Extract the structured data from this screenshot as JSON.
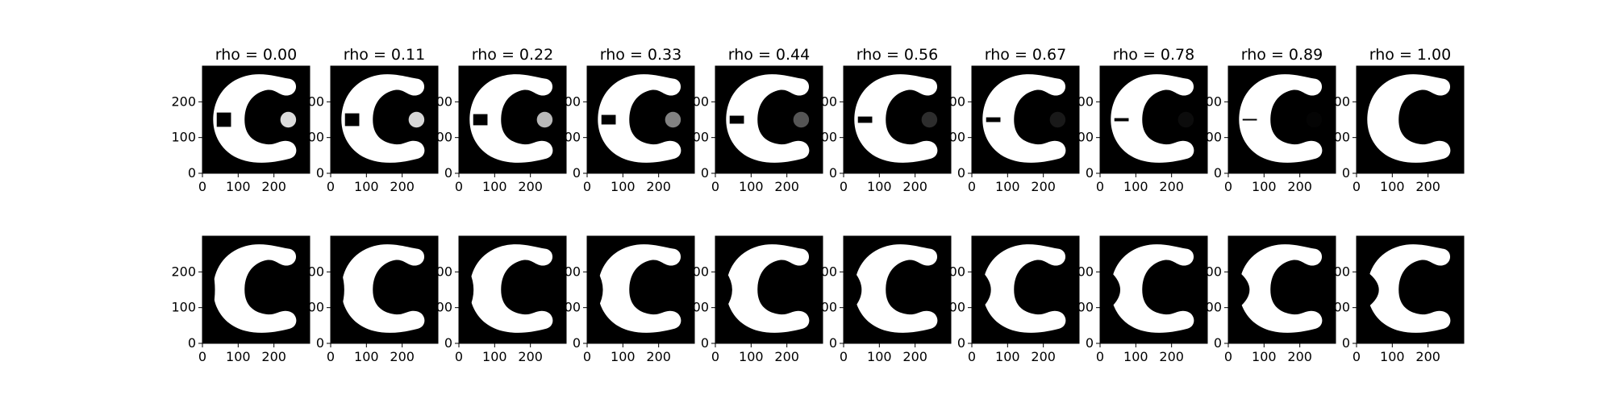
{
  "chart_data": {
    "type": "image-grid",
    "layout": {
      "rows": 2,
      "cols": 10
    },
    "rho_values": [
      0.0,
      0.11,
      0.22,
      0.33,
      0.44,
      0.56,
      0.67,
      0.78,
      0.89,
      1.0
    ],
    "titles": [
      "rho = 0.00",
      "rho = 0.11",
      "rho = 0.22",
      "rho = 0.33",
      "rho = 0.44",
      "rho = 0.56",
      "rho = 0.67",
      "rho = 0.78",
      "rho = 0.89",
      "rho = 1.00"
    ],
    "title_rows": [
      0
    ],
    "x_ticks": [
      0,
      100,
      200
    ],
    "y_ticks": [
      0,
      100,
      200
    ],
    "x_range": [
      0,
      300
    ],
    "y_range": [
      0,
      300
    ],
    "dot_gray_levels": [
      220,
      215,
      185,
      130,
      85,
      45,
      25,
      12,
      4,
      0
    ],
    "colors": {
      "background": "#000000",
      "shape": "#ffffff",
      "axes": "#000000"
    }
  }
}
